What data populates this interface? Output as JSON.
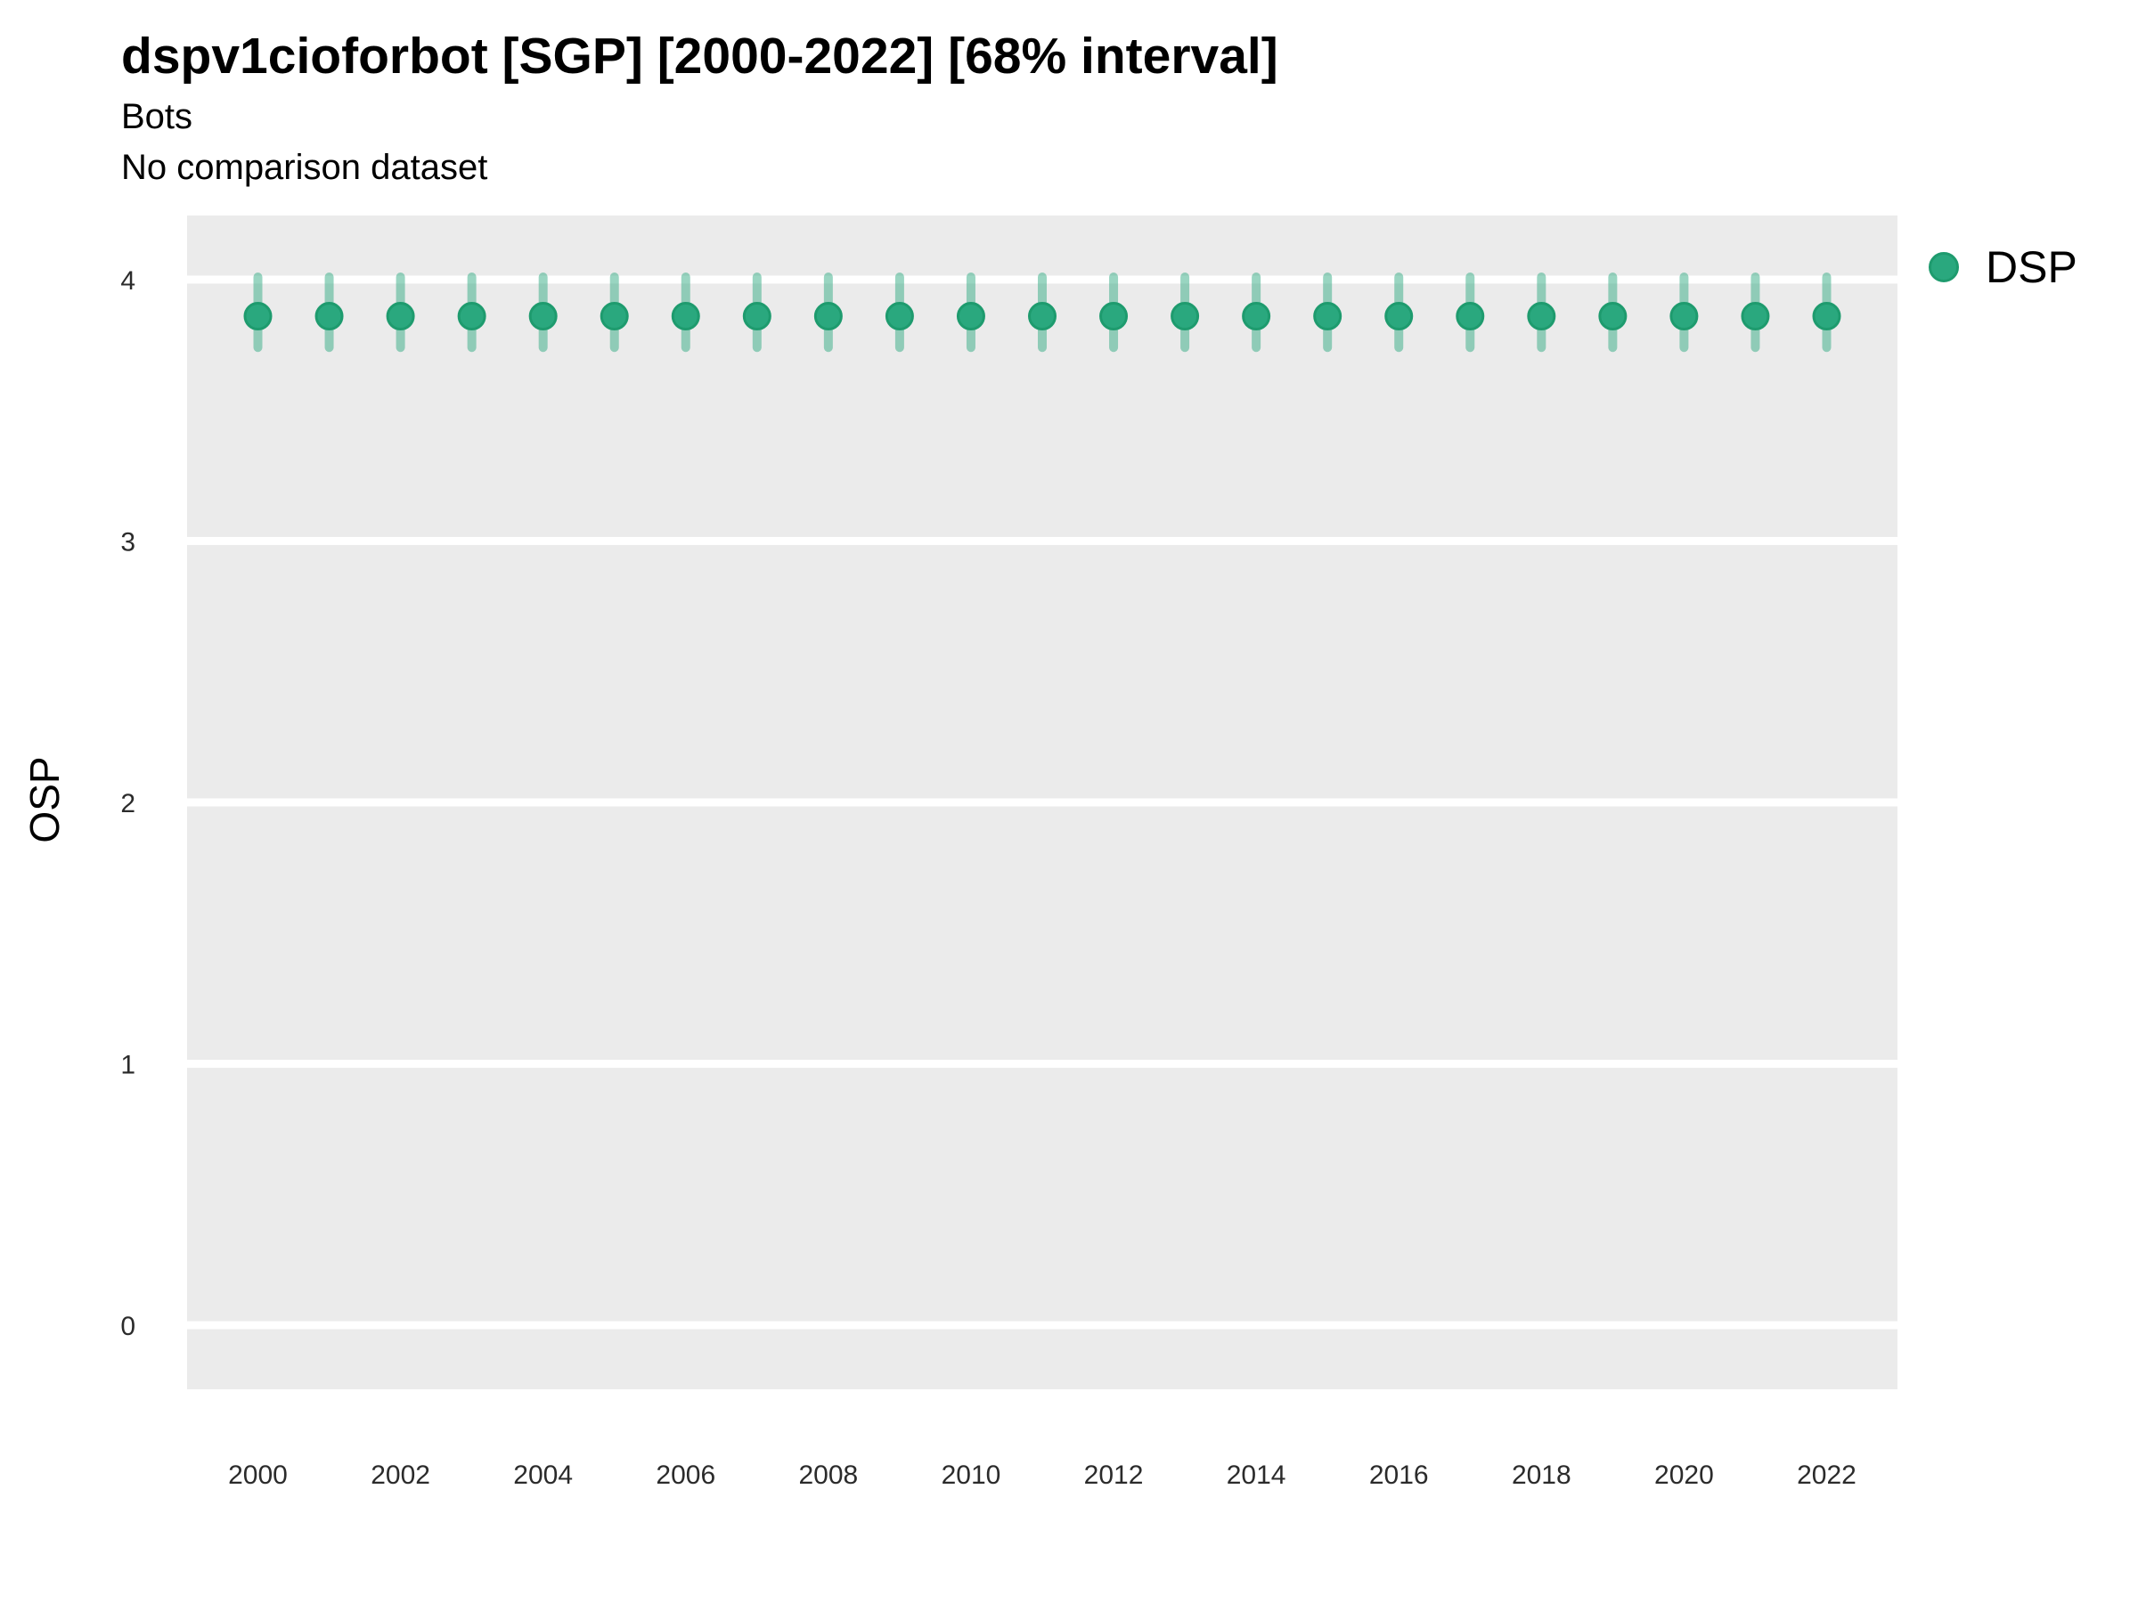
{
  "title": "dspv1cioforbot [SGP] [2000-2022] [68% interval]",
  "subtitle": "Bots",
  "note": "No comparison dataset",
  "y_axis": {
    "label": "OSP",
    "tick_labels": [
      "4",
      "3",
      "2",
      "1",
      "0"
    ]
  },
  "x_axis": {
    "tick_labels": [
      "2000",
      "2002",
      "2004",
      "2006",
      "2008",
      "2010",
      "2012",
      "2014",
      "2016",
      "2018",
      "2020",
      "2022"
    ]
  },
  "legend": {
    "position": "top-right",
    "items": [
      {
        "label": "DSP",
        "marker": "circle-icon",
        "color": "#2AA87E"
      }
    ]
  },
  "colors": {
    "panel_background": "#EBEBEB",
    "gridline": "#FFFFFF",
    "point_fill": "#2AA87E",
    "point_stroke": "#1E9B6E",
    "interval": "rgba(42,168,126,0.48)",
    "text": "#000000",
    "tick_text": "#2b2b2b"
  },
  "chart_data": {
    "type": "scatter",
    "subtype": "point-interval",
    "title": "dspv1cioforbot [SGP] [2000-2022] [68% interval]",
    "subtitle": "Bots",
    "note": "No comparison dataset",
    "interval_level": "68%",
    "xlabel": "",
    "ylabel": "OSP",
    "ylim": [
      -0.245,
      4.245
    ],
    "y_major_gridlines": [
      0,
      1,
      2,
      3,
      4
    ],
    "x_tick_years": [
      2000,
      2002,
      2004,
      2006,
      2008,
      2010,
      2012,
      2014,
      2016,
      2018,
      2020,
      2022
    ],
    "grid": "horizontal-major-only",
    "legend_position": "top-right",
    "series": [
      {
        "name": "DSP",
        "color": "#2AA87E",
        "interval_color": "rgba(42,168,126,0.48)",
        "x": [
          2000,
          2001,
          2002,
          2003,
          2004,
          2005,
          2006,
          2007,
          2008,
          2009,
          2010,
          2011,
          2012,
          2013,
          2014,
          2015,
          2016,
          2017,
          2018,
          2019,
          2020,
          2021,
          2022
        ],
        "y": [
          3.86,
          3.86,
          3.86,
          3.86,
          3.86,
          3.86,
          3.86,
          3.86,
          3.86,
          3.86,
          3.86,
          3.86,
          3.86,
          3.86,
          3.86,
          3.86,
          3.86,
          3.86,
          3.86,
          3.86,
          3.86,
          3.86,
          3.86
        ],
        "y_lower": [
          3.74,
          3.74,
          3.74,
          3.74,
          3.74,
          3.74,
          3.74,
          3.74,
          3.74,
          3.74,
          3.74,
          3.74,
          3.74,
          3.74,
          3.74,
          3.74,
          3.74,
          3.74,
          3.74,
          3.74,
          3.74,
          3.74,
          3.74
        ],
        "y_upper": [
          4.01,
          4.01,
          4.01,
          4.01,
          4.01,
          4.01,
          4.01,
          4.01,
          4.01,
          4.01,
          4.01,
          4.01,
          4.01,
          4.01,
          4.01,
          4.01,
          4.01,
          4.01,
          4.01,
          4.01,
          4.01,
          4.01,
          4.01
        ]
      }
    ]
  }
}
